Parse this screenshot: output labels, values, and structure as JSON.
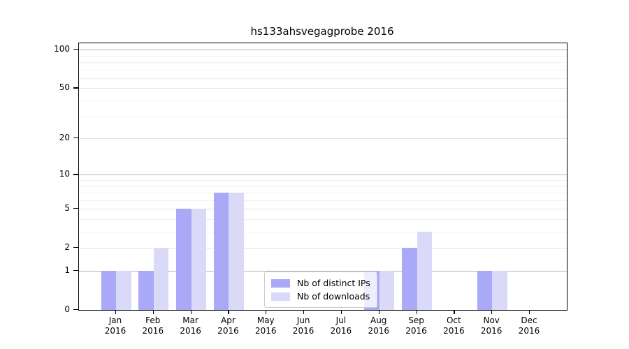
{
  "title": "hs133ahsvegagprobe 2016",
  "legend": {
    "items": [
      {
        "label": "Nb of distinct IPs",
        "color": "#a9a9f7"
      },
      {
        "label": "Nb of downloads",
        "color": "#dadaf8"
      }
    ]
  },
  "chart_data": {
    "type": "bar",
    "title": "hs133ahsvegagprobe 2016",
    "categories": [
      "Jan 2016",
      "Feb 2016",
      "Mar 2016",
      "Apr 2016",
      "May 2016",
      "Jun 2016",
      "Jul 2016",
      "Aug 2016",
      "Sep 2016",
      "Oct 2016",
      "Nov 2016",
      "Dec 2016"
    ],
    "series": [
      {
        "name": "Nb of distinct IPs",
        "color": "#a9a9f7",
        "values": [
          1,
          1,
          5,
          7,
          0,
          0,
          0,
          1,
          2,
          0,
          1,
          0
        ]
      },
      {
        "name": "Nb of downloads",
        "color": "#dadaf8",
        "values": [
          1,
          2,
          5,
          7,
          0,
          0,
          0,
          1,
          3,
          0,
          1,
          0
        ]
      }
    ],
    "xlabel": "",
    "ylabel": "",
    "yscale": "log1p",
    "ylim": [
      0,
      112
    ],
    "y_ticks": [
      0,
      1,
      2,
      5,
      10,
      20,
      50,
      100
    ],
    "y_decade_gridlines": [
      1,
      10,
      100
    ],
    "y_mid_gridlines": [
      2,
      5,
      20,
      50
    ],
    "y_minor_gridlines": [
      3,
      4,
      6,
      7,
      8,
      9,
      30,
      40,
      60,
      70,
      80,
      90
    ],
    "grid": "horizontal",
    "legend_position": "lower center"
  },
  "colors": {
    "axis": "#000000",
    "decade_grid": "#b3b3b3",
    "mid_grid": "#e2e2e2",
    "minor_grid": "#f0f0f0",
    "background": "#ffffff"
  }
}
